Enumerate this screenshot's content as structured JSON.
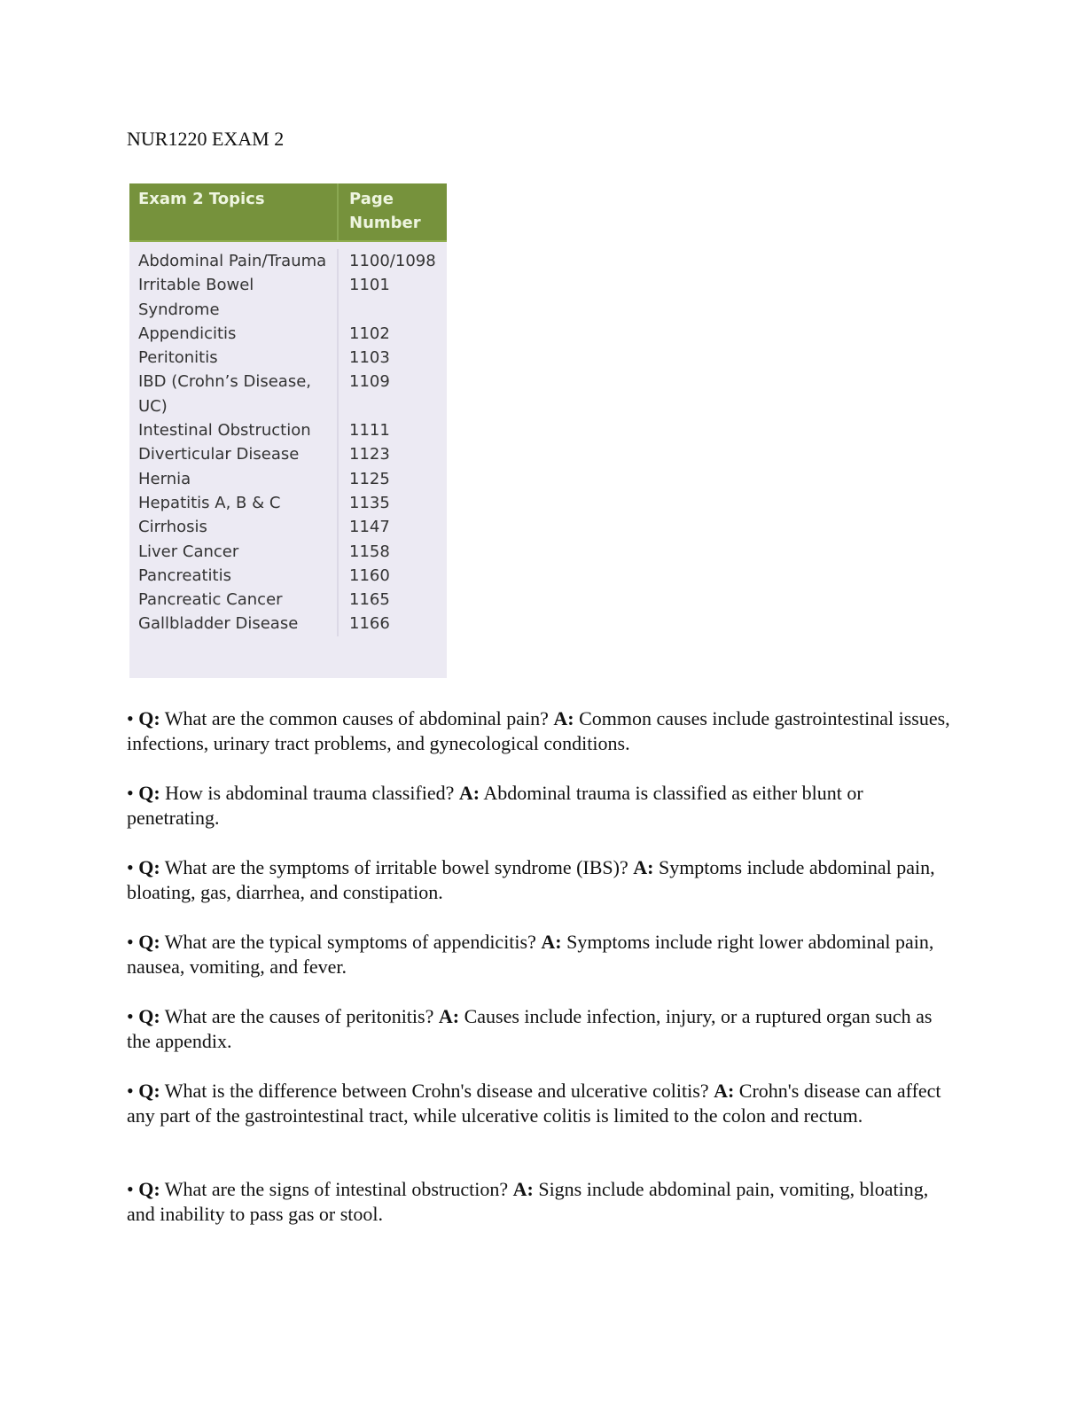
{
  "title": "NUR1220 EXAM 2",
  "table": {
    "headers": [
      "Exam 2 Topics",
      "Page Number"
    ],
    "rows": [
      [
        "Abdominal Pain/Trauma",
        "1100/1098"
      ],
      [
        "Irritable Bowel Syndrome",
        "1101"
      ],
      [
        "Appendicitis",
        "1102"
      ],
      [
        "Peritonitis",
        "1103"
      ],
      [
        "IBD (Crohn’s Disease, UC)",
        "1109"
      ],
      [
        "Intestinal Obstruction",
        "1111"
      ],
      [
        "Diverticular Disease",
        "1123"
      ],
      [
        "Hernia",
        "1125"
      ],
      [
        "Hepatitis A, B & C",
        "1135"
      ],
      [
        "Cirrhosis",
        "1147"
      ],
      [
        "Liver Cancer",
        "1158"
      ],
      [
        "Pancreatitis",
        "1160"
      ],
      [
        "Pancreatic Cancer",
        "1165"
      ],
      [
        "Gallbladder Disease",
        "1166"
      ]
    ],
    "header_color": "#76923c"
  },
  "qa": [
    {
      "q_label": "Q:",
      "q": " What are the common causes of abdominal pain? ",
      "a_label": "A:",
      "a": " Common causes include gastrointestinal issues, infections, urinary tract problems, and gynecological conditions."
    },
    {
      "q_label": "Q:",
      "q": " How is abdominal trauma classified? ",
      "a_label": "A:",
      "a": " Abdominal trauma is classified as either blunt or penetrating."
    },
    {
      "q_label": "Q:",
      "q": " What are the symptoms of irritable bowel syndrome (IBS)? ",
      "a_label": "A:",
      "a": " Symptoms include abdominal pain, bloating, gas, diarrhea, and constipation."
    },
    {
      "q_label": "Q:",
      "q": " What are the typical symptoms of appendicitis? ",
      "a_label": "A:",
      "a": " Symptoms include right lower abdominal pain, nausea, vomiting, and fever."
    },
    {
      "q_label": "Q:",
      "q": " What are the causes of peritonitis? ",
      "a_label": "A:",
      "a": " Causes include infection, injury, or a ruptured organ such as the appendix."
    },
    {
      "q_label": "Q:",
      "q": " What is the difference between Crohn's disease and ulcerative colitis? ",
      "a_label": "A:",
      "a": " Crohn's disease can affect any part of the gastrointestinal tract, while ulcerative colitis is limited to the colon and rectum."
    },
    {
      "q_label": "Q:",
      "q": " What are the signs of intestinal obstruction? ",
      "a_label": "A:",
      "a": " Signs include abdominal pain, vomiting, bloating, and inability to pass gas or stool."
    }
  ]
}
